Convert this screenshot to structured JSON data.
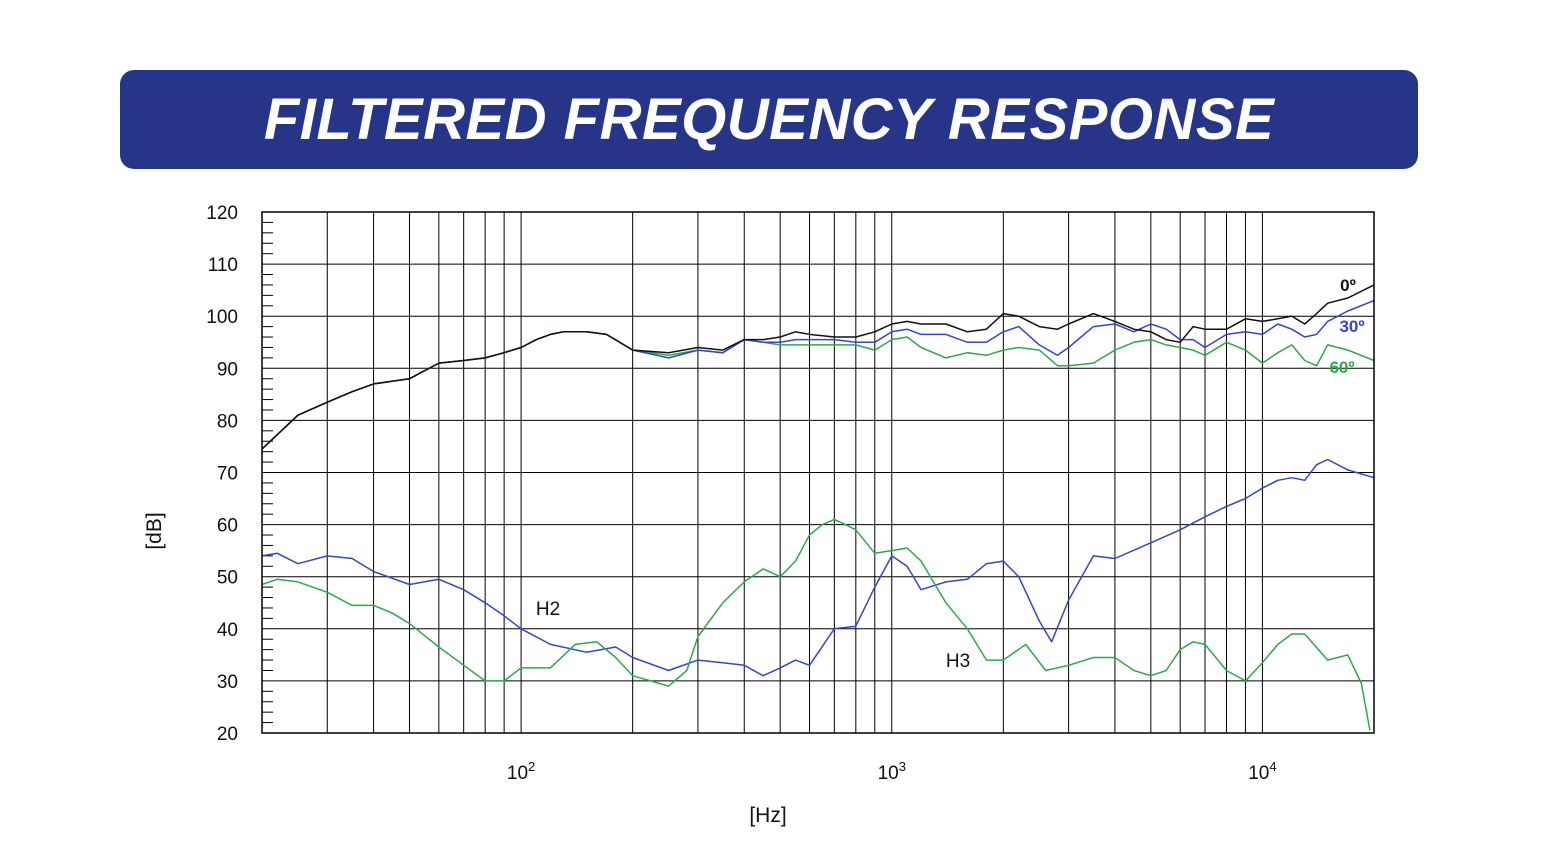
{
  "header": {
    "title": "FILTERED FREQUENCY RESPONSE"
  },
  "chart_data": {
    "type": "line",
    "title": "FILTERED FREQUENCY RESPONSE",
    "xlabel": "[Hz]",
    "ylabel": "[dB]",
    "xscale": "log",
    "xlim": [
      20,
      20000
    ],
    "ylim": [
      20,
      120
    ],
    "yticks": [
      "20",
      "30",
      "40",
      "50",
      "60",
      "70",
      "80",
      "90",
      "100",
      "110",
      "120"
    ],
    "xticks": [
      {
        "base": "10",
        "exp": "2",
        "value": 100
      },
      {
        "base": "10",
        "exp": "3",
        "value": 1000
      },
      {
        "base": "10",
        "exp": "4",
        "value": 10000
      }
    ],
    "grid": true,
    "series": [
      {
        "name": "0º",
        "color": "#111111",
        "x": [
          20,
          25,
          30,
          35,
          40,
          50,
          60,
          70,
          80,
          90,
          100,
          110,
          120,
          130,
          150,
          170,
          200,
          250,
          300,
          350,
          400,
          450,
          500,
          550,
          600,
          700,
          800,
          900,
          1000,
          1100,
          1200,
          1400,
          1600,
          1800,
          2000,
          2200,
          2500,
          2800,
          3000,
          3500,
          4000,
          4500,
          5000,
          5500,
          6000,
          6500,
          7000,
          8000,
          9000,
          10000,
          11000,
          12000,
          13000,
          14000,
          15000,
          17000,
          20000
        ],
        "y": [
          74.5,
          81,
          83.5,
          85.5,
          87,
          88,
          91,
          91.5,
          92,
          93,
          94,
          95.5,
          96.5,
          97,
          97,
          96.5,
          93.5,
          93,
          94,
          93.5,
          95.5,
          95.5,
          96,
          97,
          96.5,
          96,
          96,
          97,
          98.5,
          99,
          98.5,
          98.5,
          97,
          97.5,
          100.5,
          100,
          98,
          97.5,
          98.5,
          100.5,
          99,
          97.5,
          97,
          95.5,
          95,
          98,
          97.5,
          97.5,
          99.5,
          99,
          99.5,
          100,
          98.5,
          100.5,
          102.5,
          103.5,
          106
        ]
      },
      {
        "name": "30º",
        "color": "#3545c8",
        "x": [
          20,
          25,
          30,
          35,
          40,
          50,
          60,
          70,
          80,
          90,
          100,
          110,
          120,
          130,
          150,
          170,
          200,
          250,
          300,
          350,
          400,
          450,
          500,
          550,
          600,
          700,
          800,
          900,
          1000,
          1100,
          1200,
          1400,
          1600,
          1800,
          2000,
          2200,
          2500,
          2800,
          3000,
          3500,
          4000,
          4500,
          5000,
          5500,
          6000,
          6500,
          7000,
          8000,
          9000,
          10000,
          11000,
          12000,
          13000,
          14000,
          15000,
          17000,
          20000
        ],
        "y": [
          74.5,
          81,
          83.5,
          85.5,
          87,
          88,
          91,
          91.5,
          92,
          93,
          94,
          95.5,
          96.5,
          97,
          97,
          96.5,
          93.5,
          92,
          93.5,
          93,
          95.5,
          95,
          95,
          95.5,
          95.5,
          95.5,
          95,
          95,
          97,
          97.5,
          96.5,
          96.5,
          95,
          95,
          97,
          98,
          94.5,
          92.5,
          94,
          98,
          98.5,
          97,
          98.5,
          97.5,
          95.5,
          95.5,
          94,
          96.5,
          97,
          96.5,
          98.5,
          97.5,
          96,
          96.5,
          99,
          101,
          103
        ]
      },
      {
        "name": "60º",
        "color": "#2ea84a",
        "x": [
          20,
          25,
          30,
          35,
          40,
          50,
          60,
          70,
          80,
          90,
          100,
          110,
          120,
          130,
          150,
          170,
          200,
          250,
          300,
          350,
          400,
          450,
          500,
          550,
          600,
          700,
          800,
          900,
          1000,
          1100,
          1200,
          1400,
          1600,
          1800,
          2000,
          2200,
          2500,
          2800,
          3000,
          3500,
          4000,
          4500,
          5000,
          5500,
          6000,
          6500,
          7000,
          8000,
          9000,
          10000,
          11000,
          12000,
          13000,
          14000,
          15000,
          17000,
          20000
        ],
        "y": [
          74.5,
          81,
          83.5,
          85.5,
          87,
          88,
          91,
          91.5,
          92,
          93,
          94,
          95.5,
          96.5,
          97,
          97,
          96.5,
          93.5,
          92.5,
          93.5,
          93,
          95.5,
          95,
          94.5,
          94.5,
          94.5,
          94.5,
          94.5,
          93.5,
          95.5,
          96,
          94,
          92,
          93,
          92.5,
          93.5,
          94,
          93.5,
          90.5,
          90.5,
          91,
          93.5,
          95,
          95.5,
          94.5,
          94,
          93.5,
          92.5,
          95,
          93.5,
          91,
          93,
          94.5,
          91.5,
          90.5,
          94.5,
          93.5,
          91.5
        ]
      },
      {
        "name": "H2",
        "color": "#3545c8",
        "x": [
          20,
          22,
          25,
          30,
          35,
          40,
          50,
          60,
          70,
          80,
          90,
          100,
          120,
          150,
          180,
          200,
          250,
          300,
          350,
          400,
          450,
          500,
          550,
          600,
          700,
          800,
          900,
          1000,
          1100,
          1200,
          1400,
          1600,
          1800,
          2000,
          2200,
          2500,
          2700,
          3000,
          3500,
          4000,
          5000,
          6000,
          7000,
          8000,
          9000,
          10000,
          11000,
          12000,
          13000,
          14000,
          15000,
          17000,
          20000
        ],
        "y": [
          54,
          54.5,
          52.5,
          54,
          53.5,
          51,
          48.5,
          49.5,
          47.5,
          45,
          42.5,
          40,
          37,
          35.5,
          36.5,
          34.5,
          32,
          34,
          33.5,
          33,
          31,
          32.5,
          34,
          33,
          40,
          40.5,
          48,
          54,
          52,
          47.5,
          49,
          49.5,
          52.5,
          53,
          50,
          41.5,
          37.5,
          45.5,
          54,
          53.5,
          56.5,
          59,
          61.5,
          63.5,
          65,
          67,
          68.5,
          69,
          68.5,
          71.5,
          72.5,
          70.5,
          69
        ]
      },
      {
        "name": "H3",
        "color": "#2ea84a",
        "x": [
          20,
          22,
          25,
          30,
          35,
          40,
          45,
          50,
          60,
          70,
          80,
          90,
          100,
          120,
          140,
          160,
          180,
          200,
          250,
          280,
          300,
          350,
          400,
          450,
          500,
          550,
          600,
          650,
          700,
          750,
          800,
          900,
          1000,
          1100,
          1200,
          1400,
          1600,
          1800,
          2000,
          2300,
          2600,
          3000,
          3500,
          4000,
          4500,
          5000,
          5500,
          6000,
          6500,
          7000,
          8000,
          9000,
          10000,
          11000,
          12000,
          13000,
          15000,
          17000,
          18500,
          19500
        ],
        "y": [
          48.5,
          49.5,
          49,
          47,
          44.5,
          44.5,
          43,
          41,
          36.5,
          33,
          30,
          30,
          32.5,
          32.5,
          37,
          37.5,
          34.5,
          31,
          29,
          32,
          38.5,
          45,
          49,
          51.5,
          50,
          53,
          58,
          60,
          61,
          60,
          59,
          54.5,
          55,
          55.5,
          53,
          45,
          40,
          34,
          34,
          37,
          32,
          33,
          34.5,
          34.5,
          32,
          31,
          32,
          36,
          37.5,
          37,
          32,
          30,
          33.5,
          37,
          39,
          39,
          34,
          35,
          29.5,
          20.5
        ]
      }
    ],
    "annotations": [
      "H2",
      "H3"
    ]
  }
}
